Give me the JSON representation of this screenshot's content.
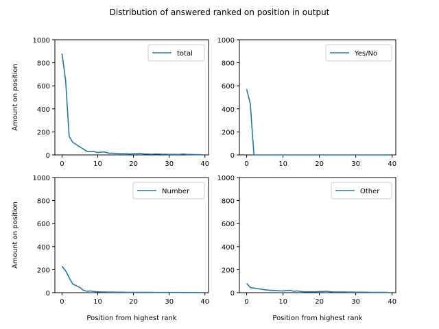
{
  "chart_data": {
    "title": "Distribution of answered ranked on position in output",
    "type": "line",
    "line_color": "#1f77b4",
    "grid": false,
    "subplots": [
      {
        "type": "line",
        "legend": "total",
        "legend_position": "top-right",
        "ylabel": "Amount on position",
        "xlabel": "",
        "xlim": [
          -2,
          41
        ],
        "ylim": [
          0,
          1000
        ],
        "xticks": [
          0,
          10,
          20,
          30,
          40
        ],
        "yticks": [
          0,
          200,
          400,
          600,
          800,
          1000
        ],
        "x": [
          0,
          1,
          2,
          3,
          4,
          5,
          6,
          7,
          8,
          9,
          10,
          11,
          12,
          13,
          14,
          15,
          16,
          17,
          18,
          19,
          20,
          21,
          22,
          23,
          24,
          25,
          26,
          27,
          28,
          29,
          30,
          31,
          32,
          33,
          34,
          35,
          36,
          37,
          38,
          39
        ],
        "y": [
          880,
          650,
          160,
          110,
          90,
          70,
          50,
          30,
          30,
          30,
          20,
          25,
          25,
          15,
          15,
          12,
          10,
          10,
          10,
          8,
          10,
          10,
          12,
          8,
          8,
          6,
          8,
          8,
          6,
          6,
          5,
          5,
          4,
          5,
          8,
          4,
          4,
          3,
          3,
          2
        ]
      },
      {
        "type": "line",
        "legend": "Yes/No",
        "legend_position": "top-right",
        "ylabel": "",
        "xlabel": "",
        "xlim": [
          -2,
          41
        ],
        "ylim": [
          0,
          1000
        ],
        "xticks": [
          0,
          10,
          20,
          30,
          40
        ],
        "yticks": [
          0,
          200,
          400,
          600,
          800,
          1000
        ],
        "x": [
          0,
          1,
          2,
          3,
          4,
          5,
          6,
          7,
          8,
          9,
          10,
          11,
          12,
          13,
          14,
          15,
          16,
          17,
          18,
          19,
          20,
          21,
          22,
          23,
          24,
          25,
          26,
          27,
          28,
          29,
          30,
          31,
          32,
          33,
          34,
          35,
          36,
          37,
          38,
          39
        ],
        "y": [
          570,
          445,
          0,
          0,
          0,
          0,
          0,
          0,
          0,
          0,
          0,
          0,
          0,
          0,
          0,
          0,
          0,
          0,
          0,
          0,
          0,
          0,
          0,
          0,
          0,
          0,
          0,
          0,
          0,
          0,
          0,
          0,
          0,
          0,
          0,
          0,
          0,
          0,
          0,
          0
        ]
      },
      {
        "type": "line",
        "legend": "Number",
        "legend_position": "top-right",
        "ylabel": "Amount on position",
        "xlabel": "Position from highest rank",
        "xlim": [
          -2,
          41
        ],
        "ylim": [
          0,
          1000
        ],
        "xticks": [
          0,
          10,
          20,
          30,
          40
        ],
        "yticks": [
          0,
          200,
          400,
          600,
          800,
          1000
        ],
        "x": [
          0,
          1,
          2,
          3,
          4,
          5,
          6,
          7,
          8,
          9,
          10,
          11,
          12,
          13,
          14,
          15,
          16,
          17,
          18,
          19,
          20,
          21,
          22,
          23,
          24,
          25,
          26,
          27,
          28,
          29,
          30,
          31,
          32,
          33,
          34,
          35,
          36,
          37,
          38,
          39
        ],
        "y": [
          230,
          190,
          130,
          75,
          60,
          45,
          20,
          12,
          15,
          10,
          8,
          6,
          6,
          5,
          5,
          4,
          4,
          4,
          3,
          3,
          3,
          3,
          3,
          3,
          3,
          3,
          2,
          2,
          2,
          2,
          2,
          2,
          2,
          2,
          1,
          1,
          1,
          1,
          1,
          1
        ]
      },
      {
        "type": "line",
        "legend": "Other",
        "legend_position": "top-right",
        "ylabel": "",
        "xlabel": "Position from highest rank",
        "xlim": [
          -2,
          41
        ],
        "ylim": [
          0,
          1000
        ],
        "xticks": [
          0,
          10,
          20,
          30,
          40
        ],
        "yticks": [
          0,
          200,
          400,
          600,
          800,
          1000
        ],
        "x": [
          0,
          1,
          2,
          3,
          4,
          5,
          6,
          7,
          8,
          9,
          10,
          11,
          12,
          13,
          14,
          15,
          16,
          17,
          18,
          19,
          20,
          21,
          22,
          23,
          24,
          25,
          26,
          27,
          28,
          29,
          30,
          31,
          32,
          33,
          34,
          35,
          36,
          37,
          38,
          39
        ],
        "y": [
          80,
          45,
          40,
          35,
          30,
          25,
          22,
          20,
          18,
          16,
          15,
          18,
          20,
          12,
          15,
          10,
          8,
          8,
          8,
          8,
          10,
          10,
          12,
          8,
          6,
          6,
          6,
          6,
          5,
          5,
          4,
          4,
          4,
          4,
          3,
          3,
          3,
          3,
          3,
          2
        ]
      }
    ]
  }
}
